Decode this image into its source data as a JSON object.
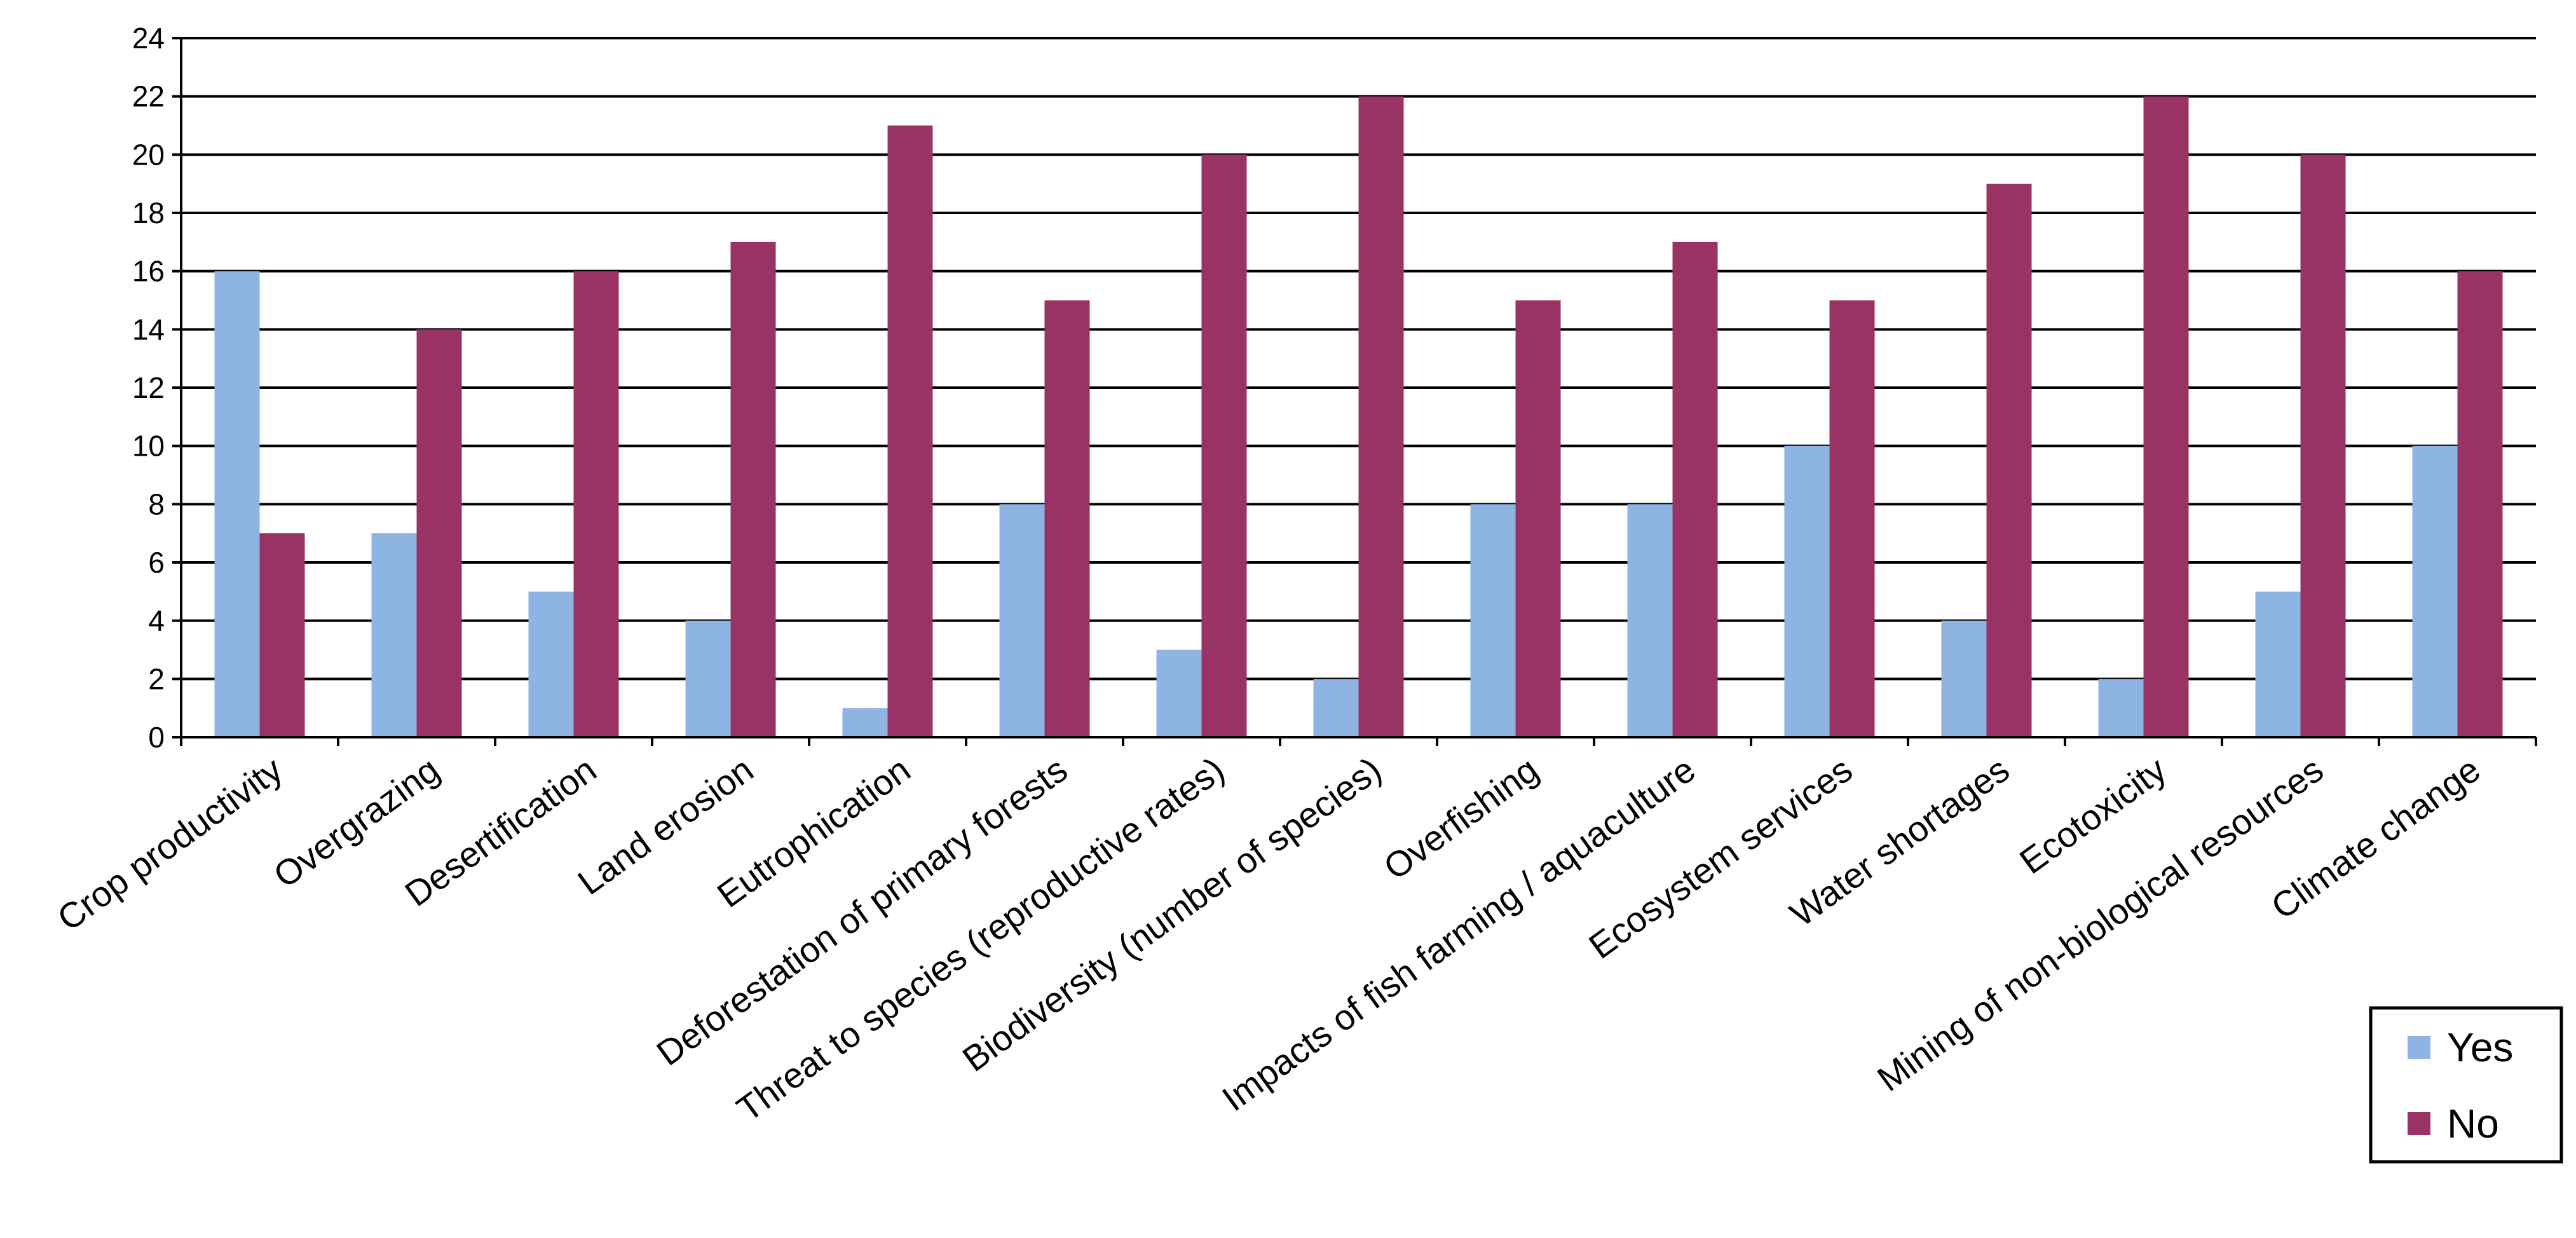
{
  "chart_data": {
    "type": "bar",
    "title": "",
    "xlabel": "",
    "ylabel": "",
    "categories": [
      "Crop productivity",
      "Overgrazing",
      "Desertification",
      "Land erosion",
      "Eutrophication",
      "Deforestation  of primary forests",
      "Threat to species (reproductive  rates)",
      "Biodiversity  (number  of species)",
      "Overfishing",
      "Impacts of fish farming / aquaculture",
      "Ecosystem services",
      "Water shortages",
      "Ecotoxicity",
      "Mining of non-biological  resources",
      "Climate change"
    ],
    "series": [
      {
        "name": "Yes",
        "color": "#8EB4E3",
        "values": [
          16,
          7,
          5,
          4,
          1,
          8,
          3,
          2,
          8,
          8,
          10,
          4,
          2,
          5,
          10
        ]
      },
      {
        "name": "No",
        "color": "#993366",
        "values": [
          7,
          14,
          16,
          17,
          21,
          15,
          20,
          22,
          15,
          17,
          15,
          19,
          22,
          20,
          16
        ]
      }
    ],
    "ylim": [
      0,
      24
    ],
    "yticks": [
      "0",
      "2",
      "4",
      "6",
      "8",
      "10",
      "12",
      "14",
      "16",
      "18",
      "20",
      "22",
      "24"
    ],
    "grid": true,
    "legend_position": "bottom-right"
  }
}
